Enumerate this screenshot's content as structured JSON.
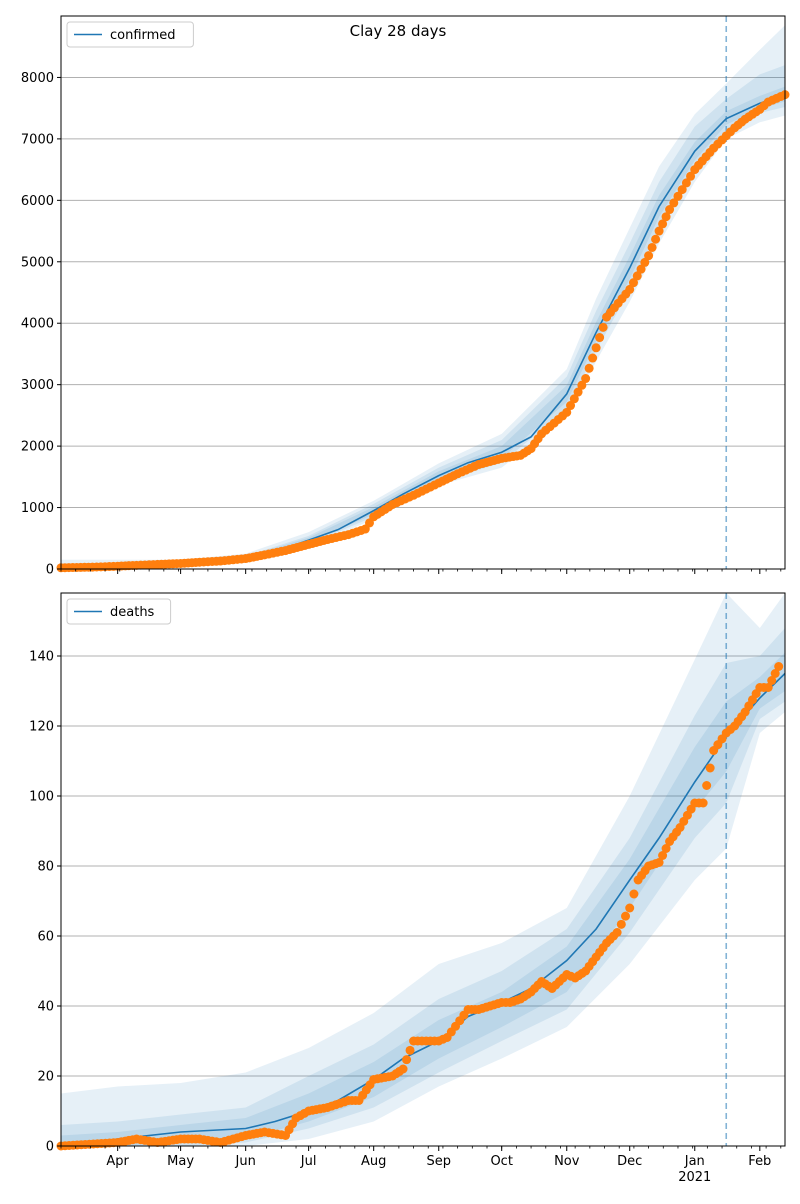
{
  "title": "Clay 28 days",
  "colors": {
    "line": "#1f77b4",
    "points": "#ff7f0e",
    "band": "#1f77b4",
    "grid": "#b0b0b0",
    "axis": "#000000"
  },
  "chart_data": [
    {
      "type": "line",
      "panel": "confirmed",
      "legend": {
        "label": "confirmed",
        "placement": "upper-left"
      },
      "grid": "horizontal",
      "xlim": [
        "2020-03-05",
        "2021-02-13"
      ],
      "ylim": [
        0,
        9000
      ],
      "yticks": [
        0,
        1000,
        2000,
        3000,
        4000,
        5000,
        6000,
        7000,
        8000
      ],
      "forecast_start": "2021-01-16",
      "model": {
        "dates": [
          "2020-03-05",
          "2020-04-01",
          "2020-05-01",
          "2020-06-01",
          "2020-06-15",
          "2020-07-01",
          "2020-07-15",
          "2020-08-01",
          "2020-08-15",
          "2020-09-01",
          "2020-09-15",
          "2020-10-01",
          "2020-10-15",
          "2020-11-01",
          "2020-11-15",
          "2020-12-01",
          "2020-12-15",
          "2021-01-01",
          "2021-01-16",
          "2021-02-01",
          "2021-02-13"
        ],
        "values": [
          20,
          40,
          80,
          170,
          280,
          470,
          640,
          950,
          1220,
          1520,
          1730,
          1900,
          2150,
          2850,
          3850,
          4900,
          5900,
          6800,
          7330,
          7580,
          7720
        ]
      },
      "bands": [
        {
          "dates": [
            "2020-03-05",
            "2020-05-01",
            "2020-06-01",
            "2020-07-01",
            "2020-08-01",
            "2020-09-01",
            "2020-10-01",
            "2020-11-01",
            "2020-11-15",
            "2020-12-01",
            "2020-12-15",
            "2021-01-01",
            "2021-01-16",
            "2021-02-01",
            "2021-02-13"
          ],
          "lower": [
            0,
            40,
            100,
            360,
            810,
            1360,
            1650,
            2480,
            3380,
            4350,
            5300,
            6300,
            7000,
            7270,
            7380
          ],
          "upper": [
            150,
            150,
            250,
            600,
            1110,
            1720,
            2200,
            3250,
            4400,
            5550,
            6550,
            7400,
            7900,
            8450,
            8850
          ]
        },
        {
          "dates": [
            "2020-03-05",
            "2020-05-01",
            "2020-06-01",
            "2020-07-01",
            "2020-08-01",
            "2020-09-01",
            "2020-10-01",
            "2020-11-01",
            "2020-11-15",
            "2020-12-01",
            "2020-12-15",
            "2021-01-01",
            "2021-01-16",
            "2021-02-01",
            "2021-02-13"
          ],
          "lower": [
            5,
            55,
            125,
            400,
            850,
            1410,
            1730,
            2600,
            3550,
            4550,
            5550,
            6500,
            7150,
            7420,
            7520
          ],
          "upper": [
            90,
            110,
            210,
            540,
            1060,
            1650,
            2100,
            3130,
            4200,
            5300,
            6300,
            7200,
            7650,
            8050,
            8200
          ]
        },
        {
          "dates": [
            "2020-03-05",
            "2020-05-01",
            "2020-06-01",
            "2020-07-01",
            "2020-08-01",
            "2020-09-01",
            "2020-10-01",
            "2020-11-01",
            "2020-11-15",
            "2020-12-01",
            "2020-12-15",
            "2021-01-01",
            "2021-01-16",
            "2021-02-01",
            "2021-02-13"
          ],
          "lower": [
            10,
            65,
            140,
            430,
            890,
            1460,
            1800,
            2720,
            3700,
            4720,
            5730,
            6650,
            7230,
            7490,
            7610
          ],
          "upper": [
            55,
            95,
            195,
            510,
            1010,
            1590,
            2000,
            2990,
            4020,
            5090,
            6080,
            6950,
            7450,
            7700,
            7850
          ]
        }
      ],
      "observed": {
        "dates": [
          "2020-03-05",
          "2020-03-20",
          "2020-04-01",
          "2020-04-10",
          "2020-04-20",
          "2020-05-01",
          "2020-05-10",
          "2020-05-20",
          "2020-06-01",
          "2020-06-10",
          "2020-06-20",
          "2020-07-01",
          "2020-07-10",
          "2020-07-20",
          "2020-07-28",
          "2020-08-01",
          "2020-08-10",
          "2020-08-20",
          "2020-09-01",
          "2020-09-10",
          "2020-09-20",
          "2020-10-01",
          "2020-10-10",
          "2020-10-15",
          "2020-10-20",
          "2020-11-01",
          "2020-11-10",
          "2020-11-15",
          "2020-11-20",
          "2020-12-01",
          "2020-12-10",
          "2020-12-15",
          "2020-12-20",
          "2021-01-01",
          "2021-01-10",
          "2021-01-16",
          "2021-01-20",
          "2021-01-25",
          "2021-02-01",
          "2021-02-05",
          "2021-02-13"
        ],
        "values": [
          20,
          30,
          45,
          60,
          75,
          90,
          110,
          130,
          170,
          230,
          300,
          400,
          480,
          560,
          650,
          850,
          1050,
          1200,
          1400,
          1550,
          1700,
          1800,
          1850,
          1960,
          2200,
          2550,
          3100,
          3600,
          4100,
          4550,
          5100,
          5500,
          5850,
          6500,
          6850,
          7050,
          7180,
          7320,
          7480,
          7600,
          7720
        ]
      }
    },
    {
      "type": "line",
      "panel": "deaths",
      "legend": {
        "label": "deaths",
        "placement": "upper-left"
      },
      "grid": "horizontal",
      "xlim": [
        "2020-03-05",
        "2021-02-13"
      ],
      "ylim": [
        0,
        158
      ],
      "yticks": [
        0,
        20,
        40,
        60,
        80,
        100,
        120,
        140
      ],
      "xticks": [
        "Apr",
        "May",
        "Jun",
        "Jul",
        "Aug",
        "Sep",
        "Oct",
        "Nov",
        "Dec",
        "Jan",
        "Feb"
      ],
      "xtick_dates": [
        "2020-04-01",
        "2020-05-01",
        "2020-06-01",
        "2020-07-01",
        "2020-08-01",
        "2020-09-01",
        "2020-10-01",
        "2020-11-01",
        "2020-12-01",
        "2021-01-01",
        "2021-02-01"
      ],
      "year_label": "2021",
      "forecast_start": "2021-01-16",
      "model": {
        "dates": [
          "2020-03-05",
          "2020-04-01",
          "2020-05-01",
          "2020-06-01",
          "2020-06-15",
          "2020-07-01",
          "2020-07-15",
          "2020-08-01",
          "2020-08-15",
          "2020-09-01",
          "2020-09-15",
          "2020-10-01",
          "2020-10-15",
          "2020-11-01",
          "2020-11-15",
          "2020-12-01",
          "2020-12-15",
          "2021-01-01",
          "2021-01-16",
          "2021-02-01",
          "2021-02-13"
        ],
        "values": [
          0,
          2,
          4,
          5,
          7,
          10,
          13,
          19,
          25,
          30,
          37,
          41,
          45,
          53,
          62,
          76,
          88,
          104,
          117,
          128,
          135
        ]
      },
      "bands": [
        {
          "dates": [
            "2020-03-05",
            "2020-04-01",
            "2020-05-01",
            "2020-06-01",
            "2020-07-01",
            "2020-08-01",
            "2020-09-01",
            "2020-10-01",
            "2020-11-01",
            "2020-12-01",
            "2021-01-01",
            "2021-01-16",
            "2021-02-01",
            "2021-02-13"
          ],
          "lower": [
            0,
            0,
            0,
            0,
            2,
            7,
            17,
            25,
            34,
            52,
            76,
            85,
            118,
            124
          ],
          "upper": [
            15,
            17,
            18,
            21,
            28,
            38,
            52,
            58,
            68,
            100,
            139,
            158,
            148,
            158
          ]
        },
        {
          "dates": [
            "2020-03-05",
            "2020-04-01",
            "2020-05-01",
            "2020-06-01",
            "2020-07-01",
            "2020-08-01",
            "2020-09-01",
            "2020-10-01",
            "2020-11-01",
            "2020-12-01",
            "2021-01-01",
            "2021-01-16",
            "2021-02-01",
            "2021-02-13"
          ],
          "lower": [
            0,
            0,
            0,
            1,
            5,
            11,
            21,
            30,
            39,
            61,
            88,
            98,
            122,
            127
          ],
          "upper": [
            6,
            7,
            9,
            11,
            20,
            29,
            42,
            50,
            62,
            88,
            123,
            138,
            140,
            148
          ]
        },
        {
          "dates": [
            "2020-03-05",
            "2020-04-01",
            "2020-05-01",
            "2020-06-01",
            "2020-07-01",
            "2020-08-01",
            "2020-09-01",
            "2020-10-01",
            "2020-11-01",
            "2020-12-01",
            "2021-01-01",
            "2021-01-16",
            "2021-02-01",
            "2021-02-13"
          ],
          "lower": [
            0,
            0,
            1,
            2,
            7,
            14,
            25,
            34,
            44,
            68,
            96,
            107,
            125,
            130
          ],
          "upper": [
            3,
            4,
            6,
            8,
            15,
            24,
            36,
            44,
            57,
            82,
            114,
            127,
            134,
            141
          ]
        }
      ],
      "observed": {
        "dates": [
          "2020-03-05",
          "2020-04-01",
          "2020-04-10",
          "2020-04-20",
          "2020-05-01",
          "2020-05-10",
          "2020-05-20",
          "2020-06-01",
          "2020-06-10",
          "2020-06-20",
          "2020-06-25",
          "2020-07-01",
          "2020-07-10",
          "2020-07-20",
          "2020-07-25",
          "2020-08-01",
          "2020-08-10",
          "2020-08-15",
          "2020-08-20",
          "2020-09-01",
          "2020-09-05",
          "2020-09-15",
          "2020-09-20",
          "2020-10-01",
          "2020-10-05",
          "2020-10-10",
          "2020-10-15",
          "2020-10-20",
          "2020-10-25",
          "2020-11-01",
          "2020-11-05",
          "2020-11-10",
          "2020-11-15",
          "2020-11-20",
          "2020-11-25",
          "2020-12-01",
          "2020-12-05",
          "2020-12-10",
          "2020-12-15",
          "2020-12-20",
          "2020-12-25",
          "2021-01-01",
          "2021-01-05",
          "2021-01-10",
          "2021-01-16",
          "2021-01-20",
          "2021-01-25",
          "2021-02-01",
          "2021-02-05",
          "2021-02-10"
        ],
        "values": [
          0,
          1,
          2,
          1,
          2,
          2,
          1,
          3,
          4,
          3,
          8,
          10,
          11,
          13,
          13,
          19,
          20,
          22,
          30,
          30,
          31,
          39,
          39,
          41,
          41,
          42,
          44,
          47,
          45,
          49,
          48,
          50,
          54,
          58,
          61,
          68,
          76,
          80,
          81,
          87,
          91,
          98,
          98,
          113,
          118,
          120,
          124,
          131,
          131,
          137
        ]
      }
    }
  ]
}
